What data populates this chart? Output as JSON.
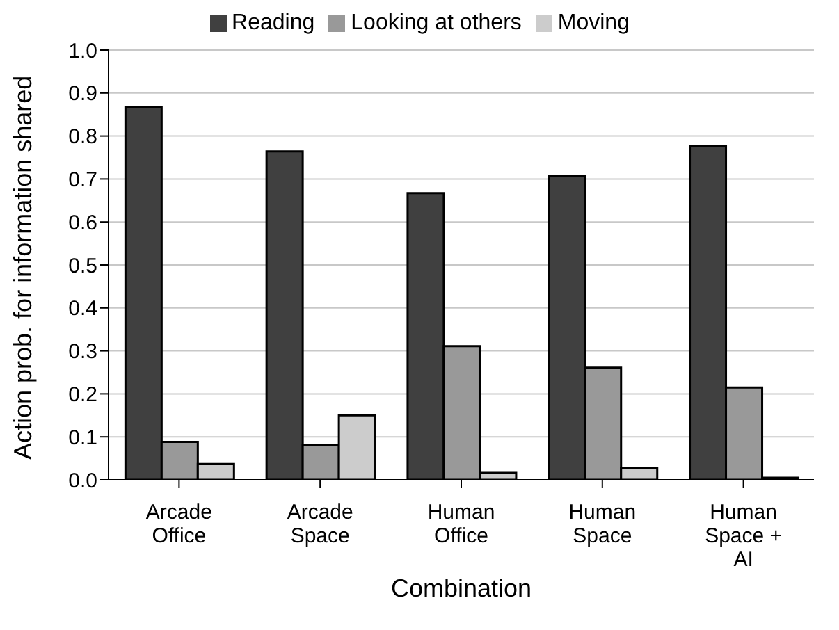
{
  "chart_data": {
    "type": "bar",
    "xlabel": "Combination",
    "ylabel": "Action prob. for information shared",
    "categories": [
      "Arcade Office",
      "Arcade Space",
      "Human Office",
      "Human Space",
      "Human Space + AI"
    ],
    "series": [
      {
        "name": "Reading",
        "color": "#404040",
        "values": [
          0.867,
          0.764,
          0.667,
          0.708,
          0.777
        ]
      },
      {
        "name": "Looking at others",
        "color": "#999999",
        "values": [
          0.088,
          0.081,
          0.311,
          0.261,
          0.215
        ]
      },
      {
        "name": "Moving",
        "color": "#cccccc",
        "values": [
          0.037,
          0.15,
          0.016,
          0.027,
          0.005
        ]
      }
    ],
    "ylim": [
      0,
      1
    ],
    "yticks": [
      {
        "value": 0,
        "label": "0.0"
      },
      {
        "value": 0.1,
        "label": "0.1"
      },
      {
        "value": 0.2,
        "label": "0.2"
      },
      {
        "value": 0.3,
        "label": "0.3"
      },
      {
        "value": 0.4,
        "label": "0.4"
      },
      {
        "value": 0.5,
        "label": "0.5"
      },
      {
        "value": 0.6,
        "label": "0.6"
      },
      {
        "value": 0.7,
        "label": "0.7"
      },
      {
        "value": 0.8,
        "label": "0.8"
      },
      {
        "value": 0.9,
        "label": "0.9"
      },
      {
        "value": 1,
        "label": "1.0"
      }
    ],
    "grid": "y",
    "legend": "top"
  }
}
